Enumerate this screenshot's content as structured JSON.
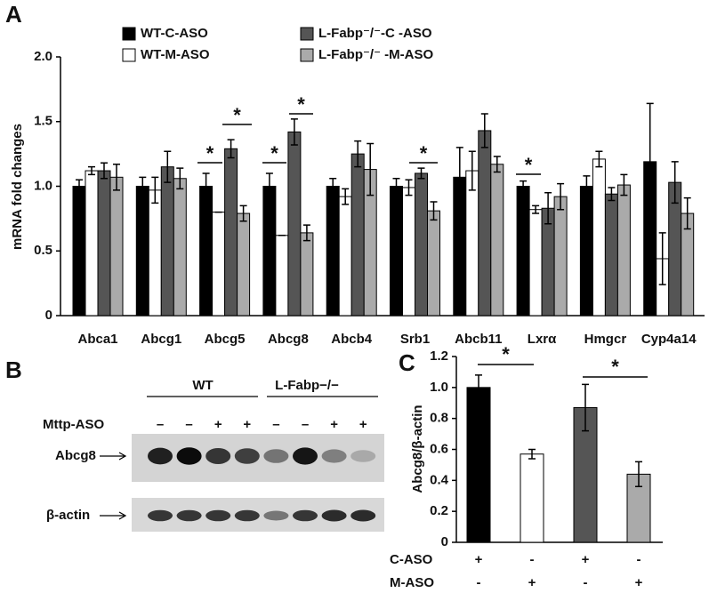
{
  "chart_data": [
    {
      "type": "bar",
      "panel": "A",
      "ylabel": "mRNA fold changes",
      "categories": [
        "Abca1",
        "Abcg1",
        "Abcg5",
        "Abcg8",
        "Abcb4",
        "Srb1",
        "Abcb11",
        "Lxrα",
        "Hmgcr",
        "Cyp4a14"
      ],
      "series": [
        {
          "name": "WT-C-ASO",
          "color": "#000000",
          "values": [
            1.0,
            1.0,
            1.0,
            1.0,
            1.0,
            1.0,
            1.07,
            1.0,
            1.0,
            1.19
          ],
          "errors": [
            0.05,
            0.07,
            0.1,
            0.1,
            0.06,
            0.06,
            0.23,
            0.04,
            0.08,
            0.45
          ]
        },
        {
          "name": "WT-M-ASO",
          "color": "#ffffff",
          "values": [
            1.12,
            0.97,
            0.8,
            0.62,
            0.92,
            0.99,
            1.12,
            0.82,
            1.21,
            0.44
          ],
          "errors": [
            0.03,
            0.1,
            0.0,
            0.0,
            0.06,
            0.06,
            0.15,
            0.03,
            0.06,
            0.2
          ]
        },
        {
          "name": "L-Fabp⁻/⁻-C -ASO",
          "color": "#555555",
          "values": [
            1.12,
            1.15,
            1.29,
            1.42,
            1.25,
            1.1,
            1.43,
            0.83,
            0.94,
            1.03
          ],
          "errors": [
            0.06,
            0.12,
            0.07,
            0.1,
            0.1,
            0.04,
            0.13,
            0.12,
            0.05,
            0.16
          ]
        },
        {
          "name": "L-Fabp⁻/⁻ -M-ASO",
          "color": "#aaaaaa",
          "values": [
            1.07,
            1.06,
            0.79,
            0.64,
            1.13,
            0.81,
            1.17,
            0.92,
            1.01,
            0.79
          ],
          "errors": [
            0.1,
            0.08,
            0.06,
            0.06,
            0.2,
            0.07,
            0.06,
            0.1,
            0.08,
            0.12
          ]
        }
      ],
      "ylim": [
        0,
        2
      ],
      "yticks": [
        0,
        0.5,
        {
          "value": 1,
          "label": "1.0"
        },
        1.5,
        {
          "value": 2,
          "label": "2.0"
        }
      ],
      "annotations": [
        "*",
        "*",
        "*",
        "*",
        "*",
        "*"
      ]
    },
    {
      "type": "bar",
      "panel": "C",
      "ylabel": "Abcg8/β-actin",
      "values": [
        1.0,
        0.57,
        0.87,
        0.44
      ],
      "errors": [
        0.08,
        0.03,
        0.15,
        0.08
      ],
      "colors": [
        "#000000",
        "#ffffff",
        "#555555",
        "#aaaaaa"
      ],
      "ylim": [
        0,
        1.2
      ],
      "yticks": [
        0,
        0.2,
        0.4,
        0.6,
        0.8,
        {
          "value": 1,
          "label": "1.0"
        },
        1.2
      ],
      "treatments": [
        {
          "name": "C-ASO",
          "signs": [
            "+",
            "-",
            "+",
            "-"
          ]
        },
        {
          "name": "M-ASO",
          "signs": [
            "-",
            "+",
            "-",
            "+"
          ]
        }
      ],
      "annotations": [
        "*",
        "*"
      ]
    }
  ],
  "blot": {
    "panel": "B",
    "groups": [
      "WT",
      "L-Fabp−/−"
    ],
    "treatment": "Mttp-ASO",
    "signs": [
      "–",
      "–",
      "+",
      "+",
      "–",
      "–",
      "+",
      "+"
    ],
    "rows": [
      "Abcg8",
      "β-actin"
    ]
  }
}
